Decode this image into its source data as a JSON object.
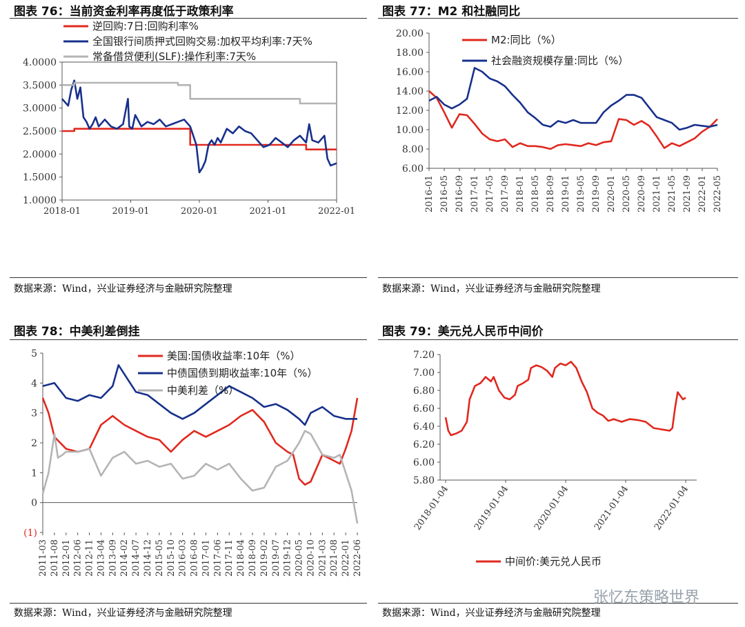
{
  "chart_data": [
    {
      "id": "c76",
      "type": "line",
      "title": "图表 76：当前资金利率再度低于政策利率",
      "source": "数据来源：Wind，兴业证券经济与金融研究院整理",
      "ylim": [
        1.0,
        4.0
      ],
      "yticks": [
        "4.0000",
        "3.5000",
        "3.0000",
        "2.5000",
        "2.0000",
        "1.5000",
        "1.0000"
      ],
      "xticks": [
        "2018-01",
        "2019-01",
        "2020-01",
        "2021-01",
        "2022-01"
      ],
      "xrange": [
        2018.0,
        2022.5
      ],
      "legend_position": "top",
      "series": [
        {
          "name": "逆回购:7日:回购利率%",
          "color": "#e0281e",
          "x": [
            2018.0,
            2018.2,
            2018.2,
            2020.1,
            2020.1,
            2022.0,
            2022.0,
            2022.5
          ],
          "y": [
            2.5,
            2.5,
            2.55,
            2.55,
            2.2,
            2.2,
            2.1,
            2.1
          ]
        },
        {
          "name": "全国银行间质押式回购交易:加权平均利率:7天%",
          "color": "#17308c",
          "x": [
            2018.0,
            2018.1,
            2018.15,
            2018.2,
            2018.25,
            2018.3,
            2018.35,
            2018.4,
            2018.45,
            2018.5,
            2018.55,
            2018.6,
            2018.7,
            2018.8,
            2018.9,
            2019.0,
            2019.08,
            2019.1,
            2019.15,
            2019.2,
            2019.3,
            2019.4,
            2019.5,
            2019.6,
            2019.7,
            2019.8,
            2019.9,
            2020.0,
            2020.1,
            2020.2,
            2020.25,
            2020.3,
            2020.35,
            2020.4,
            2020.45,
            2020.5,
            2020.55,
            2020.6,
            2020.7,
            2020.8,
            2020.9,
            2021.0,
            2021.1,
            2021.2,
            2021.3,
            2021.4,
            2021.5,
            2021.6,
            2021.7,
            2021.8,
            2021.9,
            2022.0,
            2022.05,
            2022.1,
            2022.2,
            2022.3,
            2022.35,
            2022.4,
            2022.5
          ],
          "y": [
            3.2,
            3.05,
            3.4,
            3.6,
            3.2,
            3.45,
            2.8,
            2.7,
            2.55,
            2.65,
            2.8,
            2.6,
            2.75,
            2.6,
            2.55,
            2.65,
            3.2,
            2.6,
            2.55,
            2.85,
            2.6,
            2.7,
            2.65,
            2.75,
            2.6,
            2.65,
            2.7,
            2.75,
            2.6,
            2.2,
            1.6,
            1.7,
            1.85,
            2.2,
            2.3,
            2.2,
            2.35,
            2.25,
            2.55,
            2.45,
            2.6,
            2.5,
            2.45,
            2.3,
            2.15,
            2.2,
            2.35,
            2.25,
            2.15,
            2.3,
            2.4,
            2.25,
            2.65,
            2.3,
            2.25,
            2.4,
            1.9,
            1.75,
            1.8
          ]
        },
        {
          "name": "常备借贷便利(SLF):操作利率:7天%",
          "color": "#b4b4b4",
          "x": [
            2018.0,
            2018.2,
            2018.2,
            2019.9,
            2019.9,
            2020.1,
            2020.1,
            2021.9,
            2021.9,
            2022.5
          ],
          "y": [
            3.5,
            3.5,
            3.55,
            3.55,
            3.5,
            3.5,
            3.2,
            3.2,
            3.1,
            3.1
          ]
        }
      ]
    },
    {
      "id": "c77",
      "type": "line",
      "title": "图表 77：M2 和社融同比",
      "source": "数据来源：Wind，兴业证券经济与金融研究院整理",
      "ylim": [
        6.0,
        20.0
      ],
      "yticks": [
        "20.00",
        "18.00",
        "16.00",
        "14.00",
        "12.00",
        "10.00",
        "8.00",
        "6.00"
      ],
      "xticks": [
        "2016-01",
        "2016-05",
        "2016-09",
        "2017-01",
        "2017-05",
        "2017-09",
        "2018-01",
        "2018-05",
        "2018-09",
        "2019-01",
        "2019-05",
        "2019-09",
        "2020-01",
        "2020-05",
        "2020-09",
        "2021-01",
        "2021-05",
        "2021-09",
        "2022-01",
        "2022-05"
      ],
      "xrange": [
        0,
        19
      ],
      "legend_position": "top-right",
      "series": [
        {
          "name": "M2:同比（%）",
          "color": "#e0281e",
          "x": [
            0,
            0.5,
            1,
            1.5,
            2,
            2.5,
            3,
            3.5,
            4,
            4.5,
            5,
            5.5,
            6,
            6.5,
            7,
            7.5,
            8,
            8.5,
            9,
            9.5,
            10,
            10.5,
            11,
            11.5,
            12,
            12.5,
            13,
            13.5,
            14,
            14.5,
            15,
            15.5,
            16,
            16.5,
            17,
            17.5,
            18,
            18.5,
            19
          ],
          "y": [
            14.0,
            13.3,
            11.8,
            10.2,
            11.6,
            11.5,
            10.6,
            9.6,
            9.0,
            8.8,
            9.0,
            8.2,
            8.6,
            8.3,
            8.3,
            8.2,
            8.0,
            8.4,
            8.5,
            8.4,
            8.3,
            8.6,
            8.4,
            8.7,
            8.8,
            11.1,
            11.0,
            10.5,
            10.9,
            10.4,
            9.3,
            8.1,
            8.6,
            8.3,
            8.7,
            9.1,
            9.8,
            10.3,
            11.1
          ]
        },
        {
          "name": "社会融资规模存量:同比（%）",
          "color": "#17308c",
          "x": [
            0,
            0.5,
            1,
            1.5,
            2,
            2.5,
            3,
            3.5,
            4,
            4.5,
            5,
            5.5,
            6,
            6.5,
            7,
            7.5,
            8,
            8.5,
            9,
            9.5,
            10,
            10.5,
            11,
            11.5,
            12,
            12.5,
            13,
            13.5,
            14,
            14.5,
            15,
            15.5,
            16,
            16.5,
            17,
            17.5,
            18,
            18.5,
            19
          ],
          "y": [
            13.0,
            13.4,
            12.6,
            12.2,
            12.6,
            13.2,
            16.4,
            16.0,
            15.3,
            15.0,
            14.5,
            13.6,
            12.8,
            11.8,
            11.2,
            10.5,
            10.3,
            10.9,
            10.7,
            11.0,
            10.7,
            10.7,
            10.7,
            11.8,
            12.5,
            13.0,
            13.6,
            13.6,
            13.3,
            12.3,
            11.3,
            11.0,
            10.7,
            10.0,
            10.2,
            10.5,
            10.4,
            10.3,
            10.5
          ]
        }
      ]
    },
    {
      "id": "c78",
      "type": "line",
      "title": "图表 78：中美利差倒挂",
      "source": "数据来源：Wind，兴业证券经济与金融研究院整理",
      "ylim": [
        -1,
        5
      ],
      "yticks": [
        "5",
        "4",
        "3",
        "2",
        "1",
        "0",
        "(1)"
      ],
      "xticks": [
        "2011-03",
        "2011-08",
        "2012-01",
        "2012-06",
        "2012-11",
        "2013-04",
        "2013-09",
        "2014-02",
        "2014-07",
        "2014-12",
        "2015-05",
        "2015-10",
        "2016-03",
        "2016-08",
        "2017-01",
        "2017-06",
        "2017-11",
        "2018-04",
        "2018-09",
        "2019-02",
        "2019-07",
        "2019-12",
        "2020-05",
        "2020-10",
        "2021-03",
        "2021-08",
        "2022-01",
        "2022-06"
      ],
      "xrange": [
        0,
        27
      ],
      "legend_position": "top-right",
      "series": [
        {
          "name": "美国:国债收益率:10年（%）",
          "color": "#e0281e",
          "x": [
            0,
            0.5,
            1,
            1.5,
            2,
            3,
            4,
            5,
            6,
            7,
            8,
            9,
            10,
            11,
            12,
            13,
            14,
            15,
            16,
            17,
            18,
            19,
            20,
            21,
            21.5,
            22,
            22.5,
            23,
            24,
            25,
            25.5,
            26,
            26.5,
            27
          ],
          "y": [
            3.5,
            3.0,
            2.2,
            2.0,
            1.8,
            1.7,
            1.8,
            2.6,
            2.9,
            2.6,
            2.4,
            2.2,
            2.1,
            1.7,
            2.1,
            2.4,
            2.2,
            2.4,
            2.6,
            2.9,
            3.1,
            2.7,
            2.0,
            1.7,
            1.6,
            0.8,
            0.6,
            0.7,
            1.6,
            1.4,
            1.3,
            1.8,
            2.4,
            3.5
          ]
        },
        {
          "name": "中债国债到期收益率:10年（%）",
          "color": "#17308c",
          "x": [
            0,
            1,
            2,
            3,
            4,
            5,
            6,
            6.5,
            7,
            8,
            9,
            10,
            11,
            12,
            13,
            14,
            15,
            16,
            17,
            18,
            19,
            20,
            21,
            22,
            22.5,
            23,
            24,
            25,
            26,
            27
          ],
          "y": [
            3.9,
            4.0,
            3.5,
            3.4,
            3.6,
            3.5,
            3.9,
            4.6,
            4.3,
            3.7,
            3.6,
            3.3,
            3.0,
            2.8,
            3.0,
            3.3,
            3.6,
            3.9,
            3.7,
            3.5,
            3.2,
            3.3,
            3.1,
            2.8,
            2.6,
            3.0,
            3.2,
            2.9,
            2.8,
            2.8
          ]
        },
        {
          "name": "中美利差（%）",
          "color": "#b4b4b4",
          "x": [
            0,
            0.5,
            1,
            1.3,
            1.7,
            2,
            3,
            4,
            5,
            6,
            7,
            8,
            9,
            10,
            11,
            12,
            13,
            14,
            15,
            16,
            17,
            18,
            19,
            20,
            21,
            22,
            22.5,
            23,
            24,
            25,
            25.5,
            26,
            26.5,
            27
          ],
          "y": [
            0.3,
            1.0,
            2.3,
            1.5,
            1.6,
            1.7,
            1.7,
            1.8,
            0.9,
            1.5,
            1.7,
            1.3,
            1.4,
            1.2,
            1.3,
            0.8,
            0.9,
            1.3,
            1.1,
            1.3,
            0.8,
            0.4,
            0.5,
            1.2,
            1.4,
            2.0,
            2.4,
            2.3,
            1.6,
            1.5,
            1.6,
            1.0,
            0.4,
            -0.7
          ]
        }
      ]
    },
    {
      "id": "c79",
      "type": "line",
      "title": "图表 79：美元兑人民币中间价",
      "source": "数据来源：Wind，兴业证券经济与金融研究院整理",
      "ylim": [
        5.8,
        7.2
      ],
      "yticks": [
        "7.20",
        "7.00",
        "6.80",
        "6.60",
        "6.40",
        "6.20",
        "6.00",
        "5.80"
      ],
      "xticks": [
        "2018-01-04",
        "2019-01-04",
        "2020-01-04",
        "2021-01-04",
        "2022-01-04"
      ],
      "xrange": [
        2018.0,
        2022.5
      ],
      "legend_position": "bottom",
      "series": [
        {
          "name": "中间价:美元兑人民币",
          "color": "#e0281e",
          "x": [
            2018.0,
            2018.05,
            2018.1,
            2018.2,
            2018.3,
            2018.4,
            2018.45,
            2018.55,
            2018.65,
            2018.75,
            2018.85,
            2018.9,
            2019.0,
            2019.1,
            2019.2,
            2019.3,
            2019.35,
            2019.45,
            2019.55,
            2019.6,
            2019.7,
            2019.8,
            2019.9,
            2020.0,
            2020.05,
            2020.15,
            2020.25,
            2020.35,
            2020.45,
            2020.55,
            2020.65,
            2020.75,
            2020.85,
            2020.95,
            2021.05,
            2021.15,
            2021.3,
            2021.45,
            2021.6,
            2021.75,
            2021.9,
            2022.0,
            2022.1,
            2022.2,
            2022.25,
            2022.3,
            2022.35,
            2022.45,
            2022.5
          ],
          "y": [
            6.5,
            6.35,
            6.3,
            6.32,
            6.35,
            6.45,
            6.7,
            6.85,
            6.88,
            6.95,
            6.9,
            6.95,
            6.8,
            6.72,
            6.7,
            6.75,
            6.85,
            6.88,
            6.92,
            7.05,
            7.08,
            7.06,
            7.02,
            6.95,
            7.05,
            7.1,
            7.08,
            7.12,
            7.05,
            6.9,
            6.78,
            6.6,
            6.55,
            6.52,
            6.46,
            6.48,
            6.45,
            6.48,
            6.47,
            6.45,
            6.38,
            6.37,
            6.36,
            6.35,
            6.38,
            6.6,
            6.78,
            6.7,
            6.72
          ]
        }
      ]
    }
  ],
  "watermark": "张忆东策略世界"
}
